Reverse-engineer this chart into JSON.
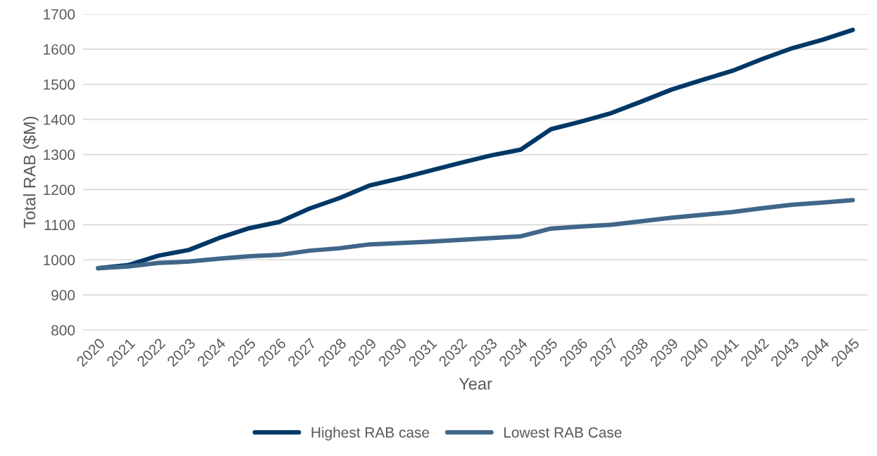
{
  "chart_data": {
    "type": "line",
    "xlabel": "Year",
    "ylabel": "Total RAB ($M)",
    "categories": [
      "2020",
      "2021",
      "2022",
      "2023",
      "2024",
      "2025",
      "2026",
      "2027",
      "2028",
      "2029",
      "2030",
      "2031",
      "2032",
      "2033",
      "2034",
      "2035",
      "2036",
      "2037",
      "2038",
      "2039",
      "2040",
      "2041",
      "2042",
      "2043",
      "2044",
      "2045"
    ],
    "series": [
      {
        "name": "Highest RAB case",
        "color": "#003865",
        "values": [
          976,
          985,
          1012,
          1028,
          1062,
          1090,
          1108,
          1146,
          1176,
          1212,
          1232,
          1254,
          1276,
          1297,
          1314,
          1372,
          1394,
          1418,
          1451,
          1485,
          1512,
          1538,
          1572,
          1603,
          1627,
          1655
        ]
      },
      {
        "name": "Lowest RAB Case",
        "color": "#40678a",
        "values": [
          976,
          981,
          991,
          995,
          1003,
          1010,
          1014,
          1026,
          1033,
          1044,
          1048,
          1052,
          1057,
          1062,
          1067,
          1089,
          1095,
          1100,
          1110,
          1120,
          1128,
          1136,
          1147,
          1157,
          1163,
          1170
        ]
      }
    ],
    "ylim": [
      800,
      1700
    ],
    "yticks": [
      800,
      900,
      1000,
      1100,
      1200,
      1300,
      1400,
      1500,
      1600,
      1700
    ],
    "grid": "y",
    "legend": "bottom",
    "marker": "none",
    "line_style": "solid"
  }
}
